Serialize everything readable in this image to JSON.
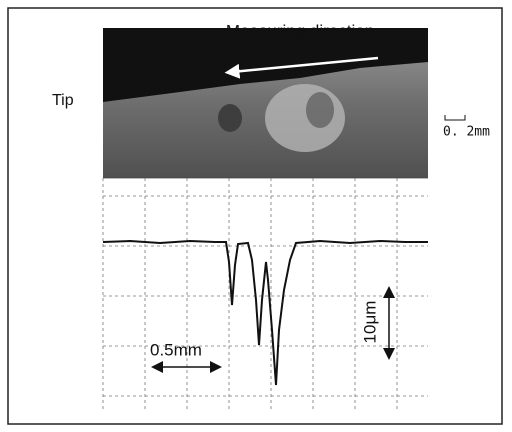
{
  "labels": {
    "direction": "Measuring direction",
    "tip": "Tip",
    "photo_scale": "0. 2mm",
    "horizontal_scale": "0.5mm",
    "vertical_scale": "10μm"
  }
}
